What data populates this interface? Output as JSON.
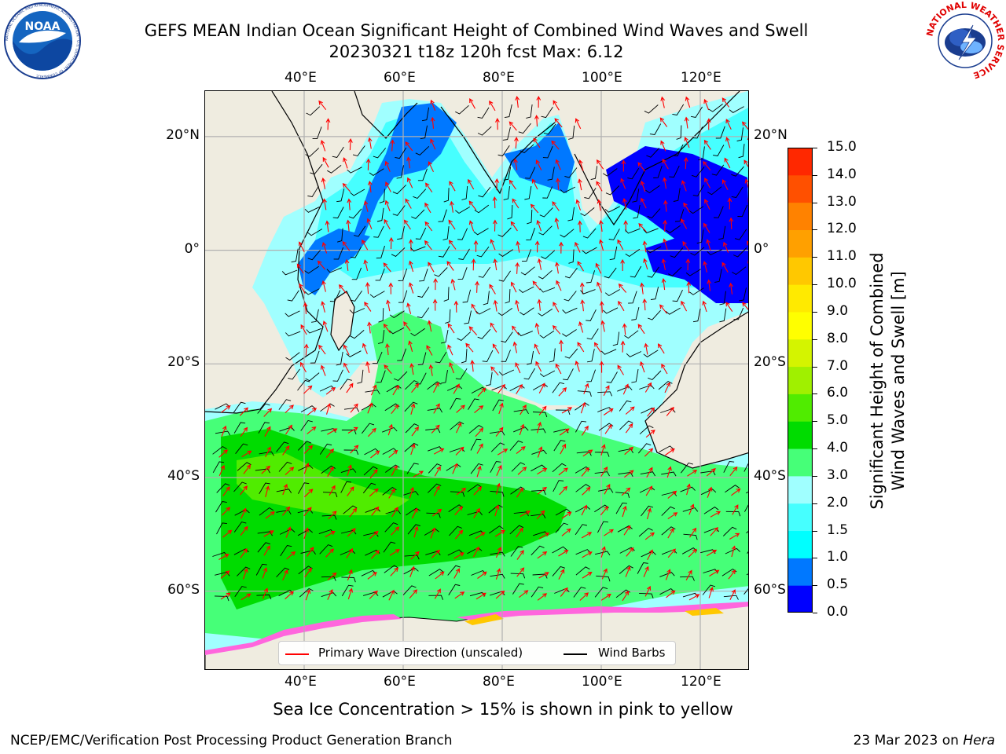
{
  "title_line1": "GEFS MEAN Indian Ocean Significant Height of Combined Wind Waves and Swell",
  "title_line2": "20230321 t18z 120h fcst   Max: 6.12",
  "logo_left_text": "NOAA",
  "logo_left_ring_text": "NATIONAL OCEANIC AND ATMOSPHERIC ADMINISTRATION · U.S. DEPARTMENT OF COMMERCE",
  "logo_right_ring_text": "NATIONAL WEATHER SERVICE",
  "lon_ticks": [
    "40°E",
    "60°E",
    "80°E",
    "100°E",
    "120°E"
  ],
  "lat_ticks": [
    "20°N",
    "0°",
    "20°S",
    "40°S",
    "60°S"
  ],
  "colorbar": {
    "label_line1": "Significant Height of Combined",
    "label_line2": "Wind Waves and Swell [m]",
    "ticks": [
      "0.0",
      "0.5",
      "1.0",
      "1.5",
      "2.0",
      "3.0",
      "4.0",
      "5.0",
      "6.0",
      "7.0",
      "8.0",
      "9.0",
      "10.0",
      "11.0",
      "12.0",
      "13.0",
      "14.0",
      "15.0"
    ],
    "colors": [
      "#0000ff",
      "#0078ff",
      "#00ffff",
      "#46ffff",
      "#a0ffff",
      "#46ff78",
      "#00dc00",
      "#50ec00",
      "#a0f000",
      "#d4f400",
      "#ffff00",
      "#ffea00",
      "#ffc800",
      "#ffa000",
      "#ff8200",
      "#ff5000",
      "#ff2800"
    ]
  },
  "legend": {
    "wave_label": "Primary Wave Direction (unscaled)",
    "wind_label": "Wind Barbs",
    "wave_color": "#ff0000",
    "wind_color": "#000000"
  },
  "caption": "Sea Ice Concentration > 15% is shown in pink to yellow",
  "footer_left": "NCEP/EMC/Verification Post Processing Product Generation Branch",
  "footer_right_prefix": "23 Mar 2023 on ",
  "footer_right_host": "Hera",
  "map": {
    "lon_range": [
      20,
      130
    ],
    "lat_range": [
      -74,
      28
    ],
    "grid_lons": [
      40,
      60,
      80,
      100,
      120
    ],
    "grid_lats": [
      20,
      0,
      -20,
      -40,
      -60
    ]
  }
}
